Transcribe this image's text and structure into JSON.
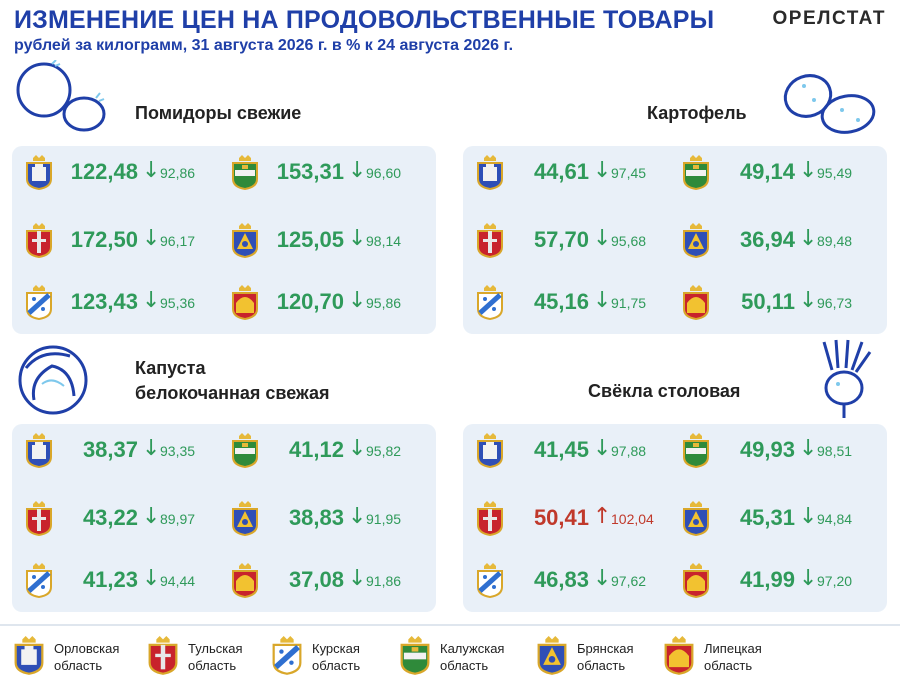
{
  "header": {
    "title": "ИЗМЕНЕНИЕ ЦЕН НА ПРОДОВОЛЬСТВЕННЫЕ ТОВАРЫ",
    "subtitle": "рублей за килограмм, 31 августа 2026 г. в % к 24 августа 2026 г.",
    "brand": "ОРЕЛСТАТ"
  },
  "colors": {
    "title_blue": "#1f3fa8",
    "down_green": "#2f9a5a",
    "up_red": "#c0392b",
    "panel_bg": "#e9f0f8"
  },
  "products": [
    {
      "name": "Помидоры свежие",
      "icon": "tomato-icon",
      "rows": [
        [
          {
            "region": "orel",
            "price": "122,48",
            "dir": "down",
            "pct": "92,86"
          },
          {
            "region": "kaluga",
            "price": "153,31",
            "dir": "down",
            "pct": "96,60"
          }
        ],
        [
          {
            "region": "tula",
            "price": "172,50",
            "dir": "down",
            "pct": "96,17"
          },
          {
            "region": "bryansk",
            "price": "125,05",
            "dir": "down",
            "pct": "98,14"
          }
        ],
        [
          {
            "region": "kursk",
            "price": "123,43",
            "dir": "down",
            "pct": "95,36"
          },
          {
            "region": "lipetsk",
            "price": "120,70",
            "dir": "down",
            "pct": "95,86"
          }
        ]
      ]
    },
    {
      "name": "Картофель",
      "icon": "potato-icon",
      "rows": [
        [
          {
            "region": "orel",
            "price": "44,61",
            "dir": "down",
            "pct": "97,45"
          },
          {
            "region": "kaluga",
            "price": "49,14",
            "dir": "down",
            "pct": "95,49"
          }
        ],
        [
          {
            "region": "tula",
            "price": "57,70",
            "dir": "down",
            "pct": "95,68"
          },
          {
            "region": "bryansk",
            "price": "36,94",
            "dir": "down",
            "pct": "89,48"
          }
        ],
        [
          {
            "region": "kursk",
            "price": "45,16",
            "dir": "down",
            "pct": "91,75"
          },
          {
            "region": "lipetsk",
            "price": "50,11",
            "dir": "down",
            "pct": "96,73"
          }
        ]
      ]
    },
    {
      "name": "Капуста\nбелокочанная свежая",
      "icon": "cabbage-icon",
      "rows": [
        [
          {
            "region": "orel",
            "price": "38,37",
            "dir": "down",
            "pct": "93,35"
          },
          {
            "region": "kaluga",
            "price": "41,12",
            "dir": "down",
            "pct": "95,82"
          }
        ],
        [
          {
            "region": "tula",
            "price": "43,22",
            "dir": "down",
            "pct": "89,97"
          },
          {
            "region": "bryansk",
            "price": "38,83",
            "dir": "down",
            "pct": "91,95"
          }
        ],
        [
          {
            "region": "kursk",
            "price": "41,23",
            "dir": "down",
            "pct": "94,44"
          },
          {
            "region": "lipetsk",
            "price": "37,08",
            "dir": "down",
            "pct": "91,86"
          }
        ]
      ]
    },
    {
      "name": "Свёкла столовая",
      "icon": "beetroot-icon",
      "rows": [
        [
          {
            "region": "orel",
            "price": "41,45",
            "dir": "down",
            "pct": "97,88"
          },
          {
            "region": "kaluga",
            "price": "49,93",
            "dir": "down",
            "pct": "98,51"
          }
        ],
        [
          {
            "region": "tula",
            "price": "50,41",
            "dir": "up",
            "pct": "102,04"
          },
          {
            "region": "bryansk",
            "price": "45,31",
            "dir": "down",
            "pct": "94,84"
          }
        ],
        [
          {
            "region": "kursk",
            "price": "46,83",
            "dir": "down",
            "pct": "97,62"
          },
          {
            "region": "lipetsk",
            "price": "41,99",
            "dir": "down",
            "pct": "97,20"
          }
        ]
      ]
    }
  ],
  "legend": [
    {
      "region": "orel",
      "label": "Орловская\nобласть"
    },
    {
      "region": "tula",
      "label": "Тульская\nобласть"
    },
    {
      "region": "kursk",
      "label": "Курская\nобласть"
    },
    {
      "region": "kaluga",
      "label": "Калужская\nобласть"
    },
    {
      "region": "bryansk",
      "label": "Брянская\nобласть"
    },
    {
      "region": "lipetsk",
      "label": "Липецкая\nобласть"
    }
  ],
  "crest_icons": {
    "orel": "orel-crest-icon",
    "tula": "tula-crest-icon",
    "kursk": "kursk-crest-icon",
    "kaluga": "kaluga-crest-icon",
    "bryansk": "bryansk-crest-icon",
    "lipetsk": "lipetsk-crest-icon"
  }
}
